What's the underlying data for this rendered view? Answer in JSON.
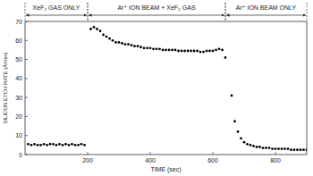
{
  "chart_data": {
    "type": "scatter",
    "x_label": "TIME (sec)",
    "y_label": "SILICON ETCH RATE (Å/min)",
    "xlim": [
      0,
      900
    ],
    "ylim": [
      0,
      70
    ],
    "xticks": [
      200,
      400,
      600,
      800
    ],
    "yticks": [
      0,
      10,
      20,
      30,
      40,
      50,
      60,
      70
    ],
    "grid": false,
    "annotations": [
      {
        "text": "XeF₂ GAS ONLY",
        "x": [
          0,
          200
        ]
      },
      {
        "text": "Ar⁺ ION BEAM + XeF₂ GAS",
        "x": [
          200,
          640
        ]
      },
      {
        "text": "Ar⁺ ION BEAM ONLY",
        "x": [
          640,
          900
        ]
      }
    ],
    "series": [
      {
        "color": "#000000",
        "marker": "circle",
        "x": [
          10,
          20,
          30,
          40,
          50,
          60,
          70,
          80,
          90,
          100,
          110,
          120,
          130,
          140,
          150,
          160,
          170,
          180,
          190,
          210,
          220,
          230,
          240,
          250,
          260,
          270,
          280,
          290,
          300,
          310,
          320,
          330,
          340,
          350,
          360,
          370,
          380,
          390,
          400,
          410,
          420,
          430,
          440,
          450,
          460,
          470,
          480,
          490,
          500,
          510,
          520,
          530,
          540,
          550,
          560,
          570,
          580,
          590,
          600,
          610,
          620,
          630,
          640,
          660,
          670,
          680,
          690,
          700,
          710,
          720,
          730,
          740,
          750,
          760,
          770,
          780,
          790,
          800,
          810,
          820,
          830,
          840,
          850,
          860,
          870,
          880,
          890,
          900
        ],
        "values": [
          5.5,
          5,
          5.5,
          5,
          5,
          5.5,
          5,
          5.5,
          5.5,
          5,
          5.5,
          5,
          5.5,
          5,
          5.5,
          5,
          5,
          5.5,
          5,
          66,
          67,
          66,
          65,
          63,
          62,
          61,
          60,
          59,
          59,
          58.5,
          58,
          58,
          57.5,
          57,
          57,
          56.5,
          56,
          56,
          56,
          55.5,
          55.5,
          55.5,
          55,
          55,
          55,
          55,
          55,
          54.5,
          54.5,
          54.5,
          54.5,
          54.5,
          54.5,
          54.5,
          54,
          54,
          54.5,
          54.5,
          54.5,
          55,
          55.5,
          55,
          51,
          31,
          17.5,
          12,
          8.5,
          6.5,
          5.5,
          5,
          4.5,
          4,
          4,
          3.5,
          3.5,
          3.5,
          3,
          3,
          3,
          3,
          3,
          3,
          2.5,
          2.5,
          2.5,
          2.5,
          2.5,
          2.5
        ]
      }
    ]
  }
}
